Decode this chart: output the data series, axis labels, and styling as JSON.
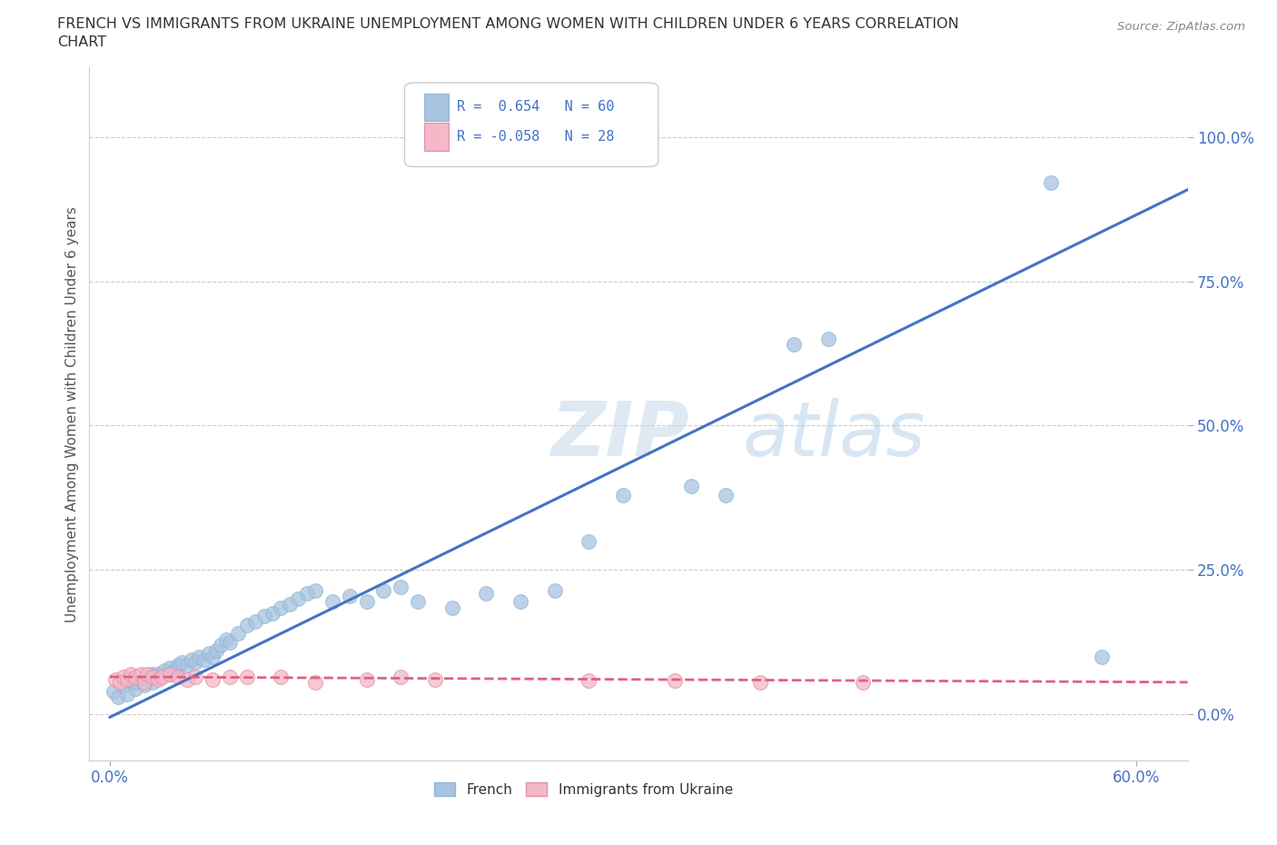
{
  "title_line1": "FRENCH VS IMMIGRANTS FROM UKRAINE UNEMPLOYMENT AMONG WOMEN WITH CHILDREN UNDER 6 YEARS CORRELATION",
  "title_line2": "CHART",
  "source": "Source: ZipAtlas.com",
  "ylabel": "Unemployment Among Women with Children Under 6 years",
  "ytick_labels": [
    "0.0%",
    "25.0%",
    "50.0%",
    "75.0%",
    "100.0%"
  ],
  "ytick_values": [
    0.0,
    0.25,
    0.5,
    0.75,
    1.0
  ],
  "xtick_values": [
    0.0,
    0.6
  ],
  "xtick_labels": [
    "0.0%",
    "60.0%"
  ],
  "xlim": [
    -0.012,
    0.63
  ],
  "ylim": [
    -0.08,
    1.12
  ],
  "french_color": "#a8c4e0",
  "ukraine_color": "#f4b8c8",
  "french_line_color": "#4472c4",
  "ukraine_line_color": "#e06080",
  "title_color": "#333333",
  "source_color": "#888888",
  "axis_label_color": "#555555",
  "tick_color": "#4472c4",
  "grid_color": "#cccccc",
  "R_french": 0.654,
  "N_french": 60,
  "R_ukraine": -0.058,
  "N_ukraine": 28,
  "french_x": [
    0.002,
    0.005,
    0.008,
    0.01,
    0.012,
    0.015,
    0.015,
    0.018,
    0.02,
    0.022,
    0.025,
    0.025,
    0.028,
    0.03,
    0.032,
    0.035,
    0.035,
    0.038,
    0.04,
    0.04,
    0.042,
    0.045,
    0.048,
    0.05,
    0.052,
    0.055,
    0.058,
    0.06,
    0.062,
    0.065,
    0.068,
    0.07,
    0.075,
    0.08,
    0.085,
    0.09,
    0.095,
    0.1,
    0.105,
    0.11,
    0.115,
    0.12,
    0.13,
    0.14,
    0.15,
    0.16,
    0.17,
    0.18,
    0.2,
    0.22,
    0.24,
    0.26,
    0.28,
    0.3,
    0.34,
    0.36,
    0.4,
    0.42,
    0.55,
    0.58
  ],
  "french_y": [
    0.04,
    0.03,
    0.05,
    0.035,
    0.06,
    0.045,
    0.055,
    0.065,
    0.05,
    0.06,
    0.07,
    0.055,
    0.07,
    0.065,
    0.075,
    0.07,
    0.08,
    0.075,
    0.085,
    0.08,
    0.09,
    0.085,
    0.095,
    0.09,
    0.1,
    0.095,
    0.105,
    0.1,
    0.11,
    0.12,
    0.13,
    0.125,
    0.14,
    0.155,
    0.16,
    0.17,
    0.175,
    0.185,
    0.19,
    0.2,
    0.21,
    0.215,
    0.195,
    0.205,
    0.195,
    0.215,
    0.22,
    0.195,
    0.185,
    0.21,
    0.195,
    0.215,
    0.3,
    0.38,
    0.395,
    0.38,
    0.64,
    0.65,
    0.92,
    0.1
  ],
  "ukraine_x": [
    0.003,
    0.006,
    0.008,
    0.01,
    0.012,
    0.015,
    0.018,
    0.02,
    0.022,
    0.025,
    0.028,
    0.03,
    0.035,
    0.04,
    0.045,
    0.05,
    0.06,
    0.07,
    0.08,
    0.1,
    0.12,
    0.15,
    0.17,
    0.19,
    0.28,
    0.33,
    0.38,
    0.44
  ],
  "ukraine_y": [
    0.06,
    0.055,
    0.065,
    0.06,
    0.07,
    0.065,
    0.07,
    0.055,
    0.07,
    0.065,
    0.06,
    0.065,
    0.07,
    0.065,
    0.06,
    0.065,
    0.06,
    0.065,
    0.065,
    0.065,
    0.055,
    0.06,
    0.065,
    0.06,
    0.058,
    0.058,
    0.055,
    0.055
  ]
}
